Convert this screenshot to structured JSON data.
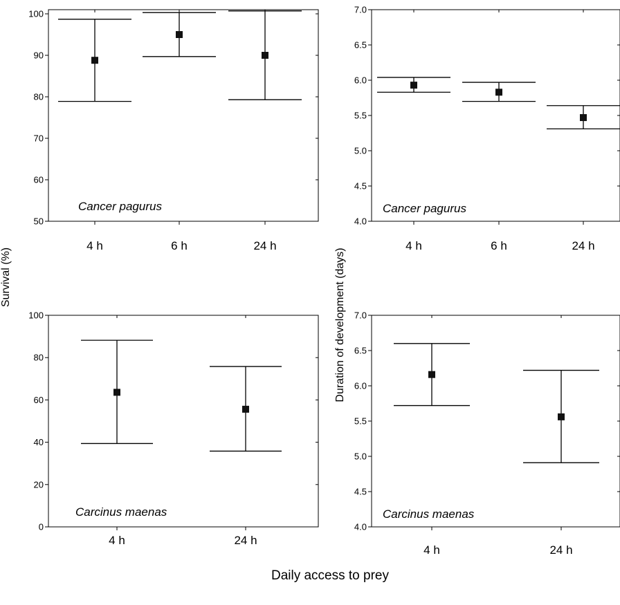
{
  "figure": {
    "shared_xlabel": "Daily access to prey"
  },
  "chart_data": [
    {
      "type": "scatter",
      "title": "",
      "xlabel": "",
      "ylabel": "Survival (%)",
      "species_label": "Cancer pagurus",
      "categories": [
        "4 h",
        "6 h",
        "24 h"
      ],
      "series": [
        {
          "values": [
            88.8,
            95.0,
            90.0
          ],
          "lower": [
            78.9,
            89.7,
            79.3
          ],
          "upper": [
            98.7,
            100.3,
            100.7
          ]
        }
      ],
      "ylim": [
        50,
        101
      ],
      "yticks": [
        "50",
        "60",
        "70",
        "80",
        "90",
        "100"
      ],
      "grid": false
    },
    {
      "type": "scatter",
      "title": "",
      "xlabel": "",
      "ylabel": "Duration of development (days)",
      "species_label": "Cancer pagurus",
      "categories": [
        "4 h",
        "6 h",
        "24 h"
      ],
      "series": [
        {
          "values": [
            5.93,
            5.83,
            5.47
          ],
          "lower": [
            5.83,
            5.7,
            5.31
          ],
          "upper": [
            6.04,
            5.97,
            5.64
          ]
        }
      ],
      "ylim": [
        4.0,
        7.0
      ],
      "yticks": [
        "4.0",
        "4.5",
        "5.0",
        "5.5",
        "6.0",
        "6.5",
        "7.0"
      ],
      "grid": false
    },
    {
      "type": "scatter",
      "title": "",
      "xlabel": "",
      "ylabel": "Survival (%)",
      "species_label": "Carcinus maenas",
      "categories": [
        "4 h",
        "24 h"
      ],
      "series": [
        {
          "values": [
            63.6,
            55.6
          ],
          "lower": [
            39.4,
            35.8
          ],
          "upper": [
            88.2,
            75.8
          ]
        }
      ],
      "ylim": [
        0,
        100
      ],
      "yticks": [
        "0",
        "20",
        "40",
        "60",
        "80",
        "100"
      ],
      "grid": false
    },
    {
      "type": "scatter",
      "title": "",
      "xlabel": "",
      "ylabel": "Duration of development (days)",
      "species_label": "Carcinus maenas",
      "categories": [
        "4 h",
        "24 h"
      ],
      "series": [
        {
          "values": [
            6.16,
            5.56
          ],
          "lower": [
            5.72,
            4.91
          ],
          "upper": [
            6.6,
            6.22
          ]
        }
      ],
      "ylim": [
        4.0,
        7.0
      ],
      "yticks": [
        "4.0",
        "4.5",
        "5.0",
        "5.5",
        "6.0",
        "6.5",
        "7.0"
      ],
      "grid": false
    }
  ]
}
